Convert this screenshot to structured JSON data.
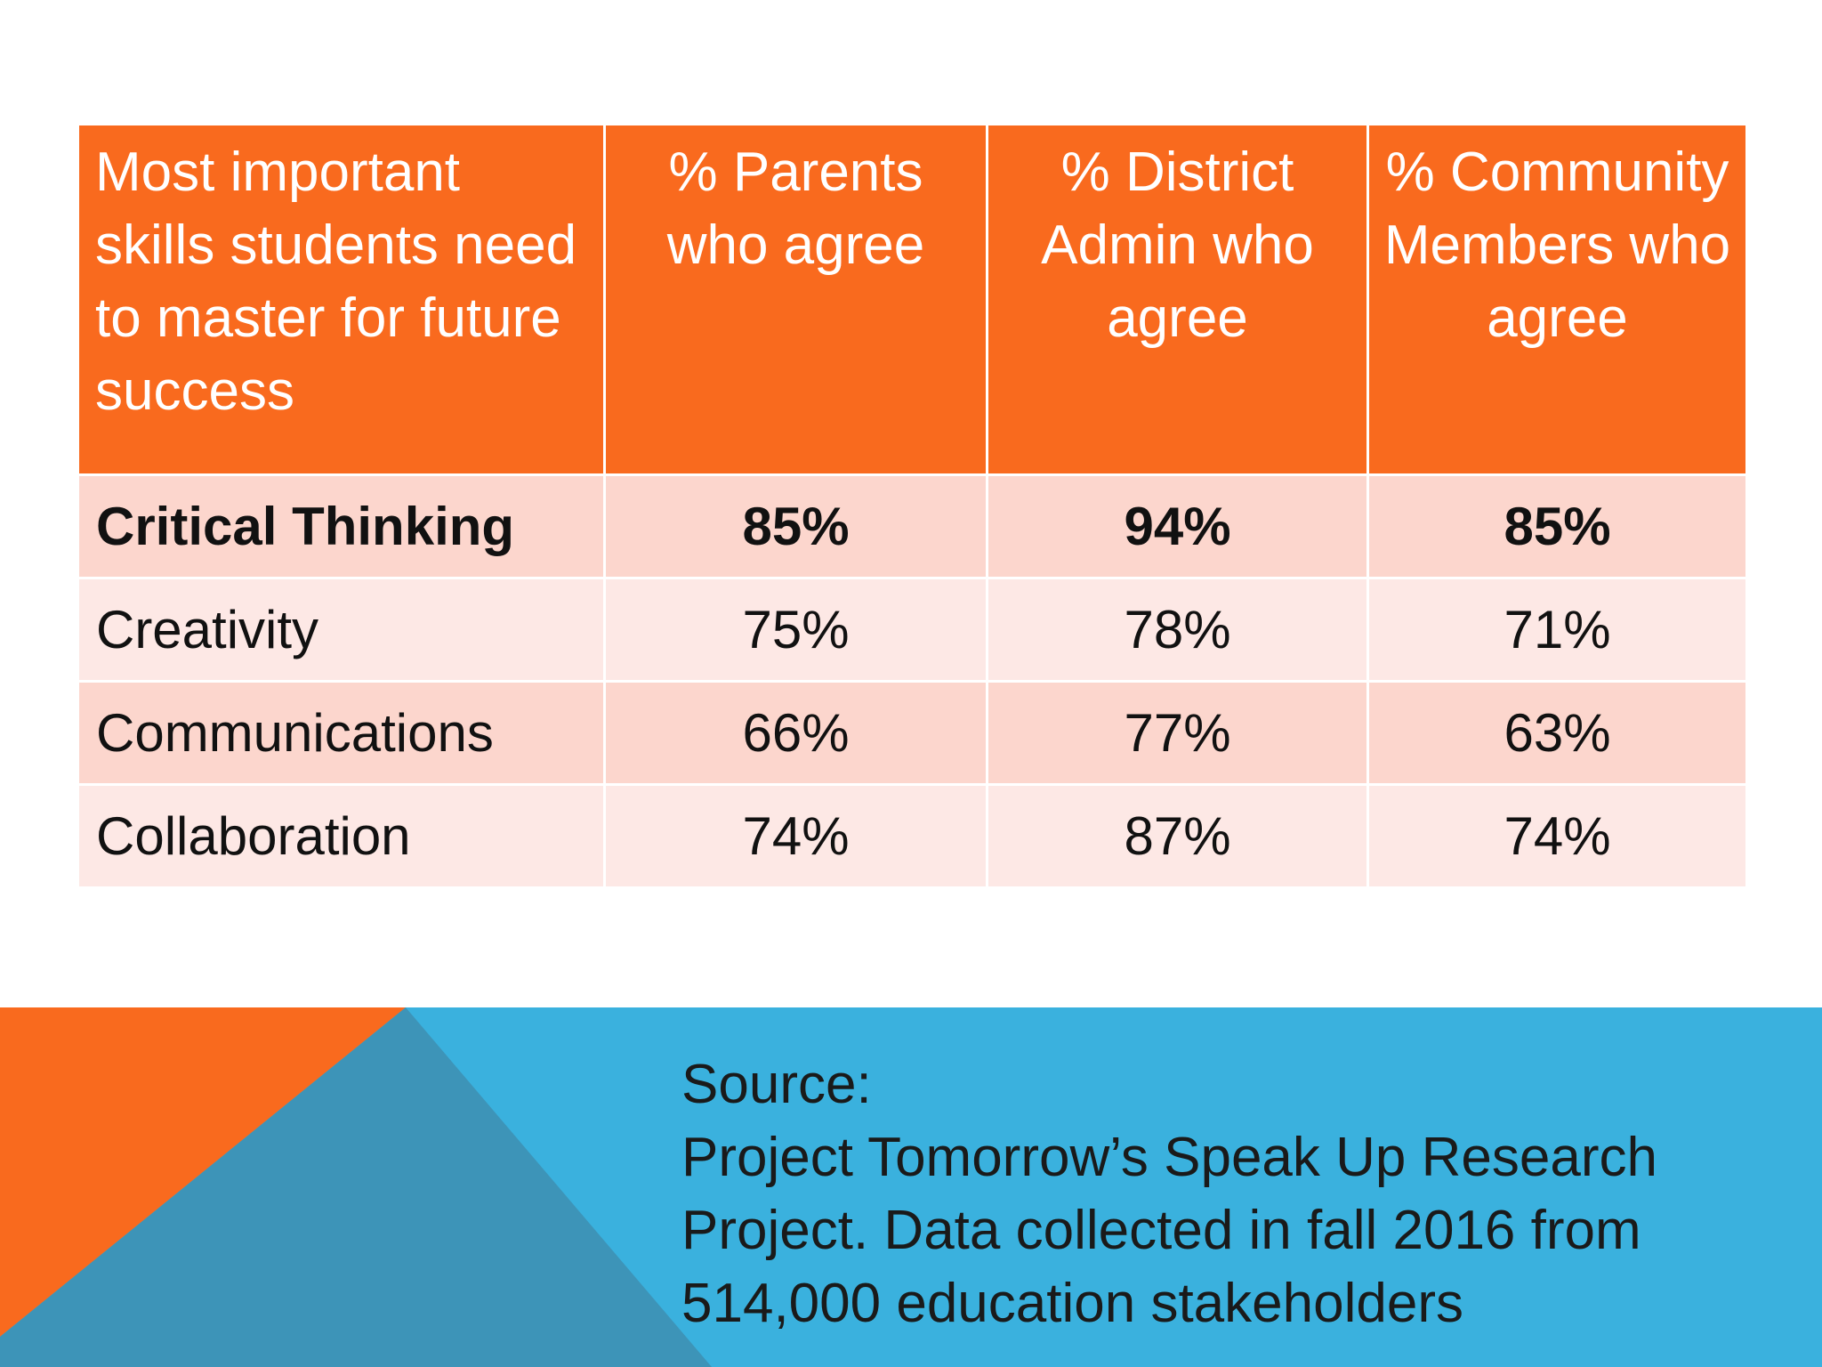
{
  "colors": {
    "header_orange": "#f96a1e",
    "row_dark": "#fcd6cd",
    "row_light": "#fde8e5",
    "footer_blue": "#3ab1de",
    "footer_teal": "#3d94b8"
  },
  "table": {
    "headers": [
      "Most important skills students need to master for future success",
      "% Parents who agree",
      "% District Admin who agree",
      "% Community Members who agree"
    ],
    "rows": [
      {
        "skill": "Critical Thinking",
        "parents": "85%",
        "admin": "94%",
        "community": "85%"
      },
      {
        "skill": "Creativity",
        "parents": "75%",
        "admin": "78%",
        "community": "71%"
      },
      {
        "skill": "Communications",
        "parents": "66%",
        "admin": "77%",
        "community": "63%"
      },
      {
        "skill": "Collaboration",
        "parents": "74%",
        "admin": "87%",
        "community": "74%"
      }
    ]
  },
  "source": {
    "heading": "Source:",
    "lines": [
      "Project Tomorrow’s Speak Up Research",
      "Project. Data collected in fall 2016 from",
      "514,000 education stakeholders"
    ]
  }
}
